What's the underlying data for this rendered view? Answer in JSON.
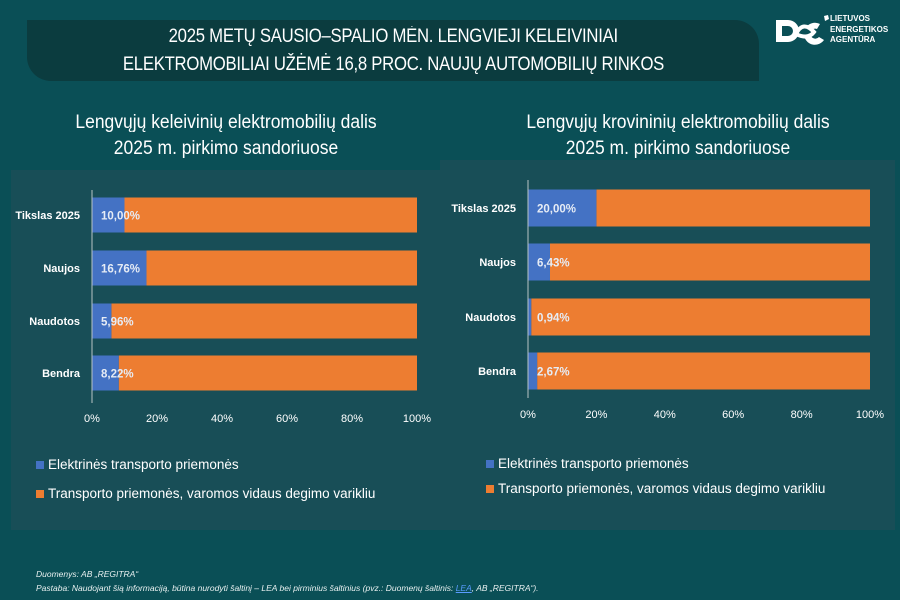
{
  "banner": {
    "line1": "2025 METŲ SAUSIO–SPALIO MĖN. LENGVIEJI KELEIVINIAI",
    "line2": "ELEKTROMOBILIAI UŽĖMĖ 16,8 PROC. NAUJŲ AUTOMOBILIŲ RINKOS"
  },
  "logo": {
    "icon": "lea-logo-icon",
    "line1": "LIETUVOS",
    "line2": "ENERGETIKOS",
    "line3": "AGENTŪRA"
  },
  "colors": {
    "background": "#0a4f56",
    "panel": "#184e57",
    "electric": "#4472c4",
    "ice": "#ed7d31"
  },
  "chart_data": [
    {
      "type": "bar",
      "orientation": "horizontal",
      "stacked": "percent",
      "title_line1": "Lengvųjų keleivinių elektromobilių dalis",
      "title_line2": "2025 m. pirkimo sandoriuose",
      "categories": [
        "Tikslas 2025",
        "Naujos",
        "Naudotos",
        "Bendra"
      ],
      "series": [
        {
          "name": "Elektrinės transporto priemonės",
          "values": [
            10.0,
            16.76,
            5.96,
            8.22
          ],
          "labels": [
            "10,00%",
            "16,76%",
            "5,96%",
            "8,22%"
          ]
        },
        {
          "name": "Transporto priemonės, varomos vidaus degimo varikliu",
          "values": [
            90.0,
            83.24,
            94.04,
            91.78
          ]
        }
      ],
      "xlim": [
        0,
        100
      ],
      "xticks": [
        "0%",
        "20%",
        "40%",
        "60%",
        "80%",
        "100%"
      ],
      "legend": "bottom-left"
    },
    {
      "type": "bar",
      "orientation": "horizontal",
      "stacked": "percent",
      "title_line1": "Lengvųjų krovininių elektromobilių dalis",
      "title_line2": "2025 m. pirkimo sandoriuose",
      "categories": [
        "Tikslas 2025",
        "Naujos",
        "Naudotos",
        "Bendra"
      ],
      "series": [
        {
          "name": "Elektrinės transporto priemonės",
          "values": [
            20.0,
            6.43,
            0.94,
            2.67
          ],
          "labels": [
            "20,00%",
            "6,43%",
            "0,94%",
            "2,67%"
          ]
        },
        {
          "name": "Transporto priemonės, varomos vidaus degimo varikliu",
          "values": [
            80.0,
            93.57,
            99.06,
            97.33
          ]
        }
      ],
      "xlim": [
        0,
        100
      ],
      "xticks": [
        "0%",
        "20%",
        "40%",
        "60%",
        "80%",
        "100%"
      ],
      "legend": "bottom-left"
    }
  ],
  "footer": {
    "line1": "Duomenys: AB „REGITRA“",
    "line2_pre": "Pastaba: Naudojant šią informaciją, būtina nurodyti šaltinį – LEA bei pirminius šaltinius (pvz.: Duomenų šaltinis: ",
    "line2_link": "LEA",
    "line2_post": ", AB „REGITRA“)."
  }
}
